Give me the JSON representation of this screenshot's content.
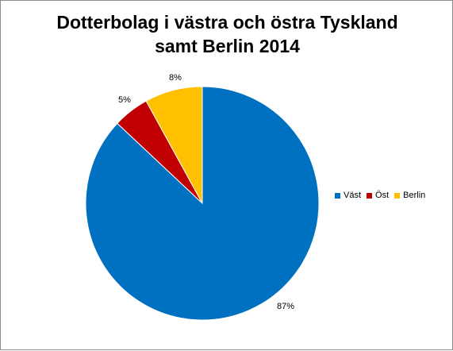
{
  "chart_data": {
    "type": "pie",
    "title": [
      "Dotterbolag i västra och östra Tyskland",
      "samt Berlin 2014"
    ],
    "slices": [
      {
        "name": "Väst",
        "value": 87,
        "label": "87%",
        "color": "#0070c0"
      },
      {
        "name": "Öst",
        "value": 5,
        "label": "5%",
        "color": "#c00000"
      },
      {
        "name": "Berlin",
        "value": 8,
        "label": "8%",
        "color": "#ffc000"
      }
    ],
    "legend_position": "right",
    "start_angle": "12 o'clock, clockwise"
  }
}
